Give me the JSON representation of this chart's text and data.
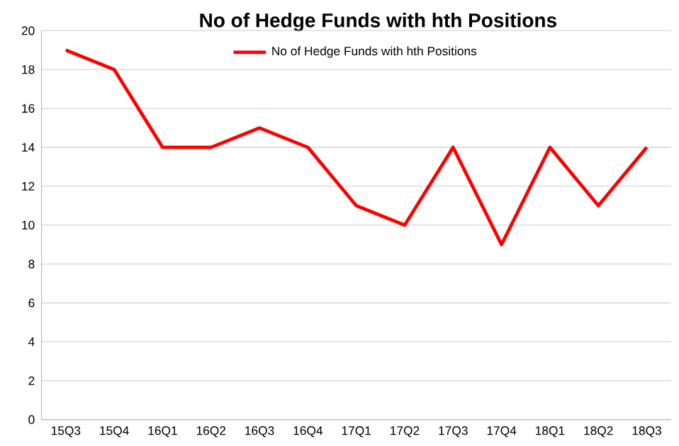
{
  "chart_data": {
    "type": "line",
    "title": "No of Hedge Funds with hth Positions",
    "categories": [
      "15Q3",
      "15Q4",
      "16Q1",
      "16Q2",
      "16Q3",
      "16Q4",
      "17Q1",
      "17Q2",
      "17Q3",
      "17Q4",
      "18Q1",
      "18Q2",
      "18Q3"
    ],
    "series": [
      {
        "name": "No of Hedge Funds with hth Positions",
        "color": "#ff0000",
        "values": [
          19,
          18,
          14,
          14,
          15,
          14,
          11,
          10,
          14,
          9,
          14,
          11,
          14
        ]
      }
    ],
    "ylim": [
      0,
      20
    ],
    "yticks": [
      0,
      2,
      4,
      6,
      8,
      10,
      12,
      14,
      16,
      18,
      20
    ],
    "grid": "y",
    "legend": "top",
    "marker": "none",
    "line_style": "solid"
  }
}
